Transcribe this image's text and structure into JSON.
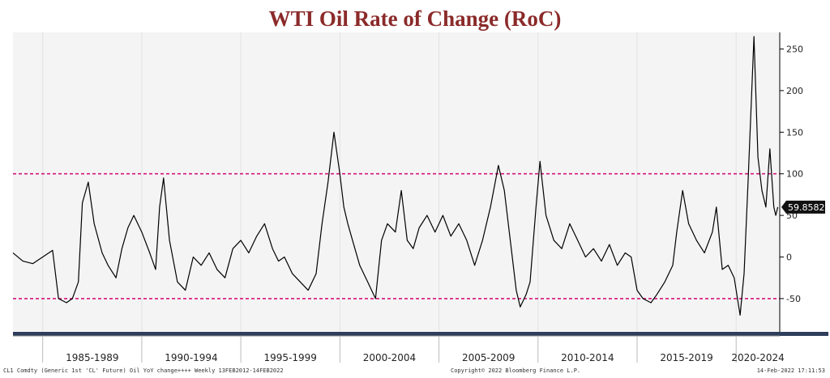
{
  "chart_data": {
    "type": "line",
    "title": "WTI Oil Rate of Change (RoC)",
    "xlabel": "",
    "ylabel": "",
    "x_range": [
      1983.5,
      2022.2
    ],
    "ylim": [
      -90,
      270
    ],
    "y_ticks": [
      -50,
      0,
      50,
      100,
      150,
      200,
      250
    ],
    "x_period_labels": [
      "1985-1989",
      "1990-1994",
      "1995-1999",
      "2000-2004",
      "2005-2009",
      "2010-2014",
      "2015-2019",
      "2020-2024"
    ],
    "reference_lines": [
      {
        "value": 100,
        "style": "dashed",
        "color": "#d6147a"
      },
      {
        "value": -50,
        "style": "dashed",
        "color": "#d6147a"
      }
    ],
    "last_value_label": "59.8582",
    "grid": "vertical",
    "series": [
      {
        "color": "#000000",
        "x": [
          1983.5,
          1984.0,
          1984.5,
          1985.0,
          1985.5,
          1985.8,
          1986.2,
          1986.5,
          1986.8,
          1987.0,
          1987.3,
          1987.6,
          1988.0,
          1988.3,
          1988.7,
          1989.0,
          1989.3,
          1989.6,
          1990.0,
          1990.4,
          1990.7,
          1990.9,
          1991.1,
          1991.4,
          1991.8,
          1992.2,
          1992.6,
          1993.0,
          1993.4,
          1993.8,
          1994.2,
          1994.6,
          1995.0,
          1995.4,
          1995.8,
          1996.2,
          1996.6,
          1996.9,
          1997.2,
          1997.6,
          1998.0,
          1998.4,
          1998.8,
          1999.1,
          1999.4,
          1999.7,
          2000.0,
          2000.2,
          2000.4,
          2000.7,
          2001.0,
          2001.4,
          2001.8,
          2002.1,
          2002.4,
          2002.8,
          2003.1,
          2003.4,
          2003.7,
          2004.0,
          2004.4,
          2004.8,
          2005.2,
          2005.6,
          2006.0,
          2006.4,
          2006.8,
          2007.2,
          2007.6,
          2008.0,
          2008.3,
          2008.5,
          2008.7,
          2008.9,
          2009.1,
          2009.4,
          2009.6,
          2009.9,
          2010.1,
          2010.4,
          2010.8,
          2011.2,
          2011.6,
          2012.0,
          2012.4,
          2012.8,
          2013.2,
          2013.6,
          2014.0,
          2014.4,
          2014.7,
          2015.0,
          2015.3,
          2015.7,
          2016.0,
          2016.4,
          2016.8,
          2017.0,
          2017.3,
          2017.6,
          2018.0,
          2018.4,
          2018.8,
          2019.0,
          2019.3,
          2019.6,
          2019.9,
          2020.2,
          2020.4,
          2020.6,
          2020.9,
          2021.1,
          2021.3,
          2021.5,
          2021.7,
          2021.9,
          2022.0,
          2022.1
        ],
        "values": [
          5,
          -5,
          -8,
          0,
          8,
          -50,
          -55,
          -50,
          -30,
          65,
          90,
          40,
          5,
          -10,
          -25,
          10,
          35,
          50,
          30,
          5,
          -15,
          60,
          95,
          20,
          -30,
          -40,
          0,
          -10,
          5,
          -15,
          -25,
          10,
          20,
          5,
          25,
          40,
          10,
          -5,
          0,
          -20,
          -30,
          -40,
          -20,
          40,
          90,
          150,
          100,
          60,
          40,
          15,
          -10,
          -30,
          -50,
          20,
          40,
          30,
          80,
          20,
          10,
          35,
          50,
          30,
          50,
          25,
          40,
          20,
          -10,
          20,
          60,
          110,
          80,
          40,
          0,
          -40,
          -60,
          -45,
          -30,
          60,
          115,
          50,
          20,
          10,
          40,
          20,
          0,
          10,
          -5,
          15,
          -10,
          5,
          0,
          -40,
          -50,
          -55,
          -45,
          -30,
          -10,
          30,
          80,
          40,
          20,
          5,
          30,
          60,
          -15,
          -10,
          -25,
          -70,
          -20,
          90,
          265,
          120,
          80,
          60,
          130,
          60,
          50,
          60
        ]
      }
    ]
  },
  "footer": {
    "left": "CL1 Comdty (Generic 1st 'CL' Future) Oil YoY change++++  Weekly 13FEB2012-14FEB2022",
    "mid": "Copyright© 2022 Bloomberg Finance L.P.",
    "right": "14-Feb-2022 17:11:53"
  }
}
